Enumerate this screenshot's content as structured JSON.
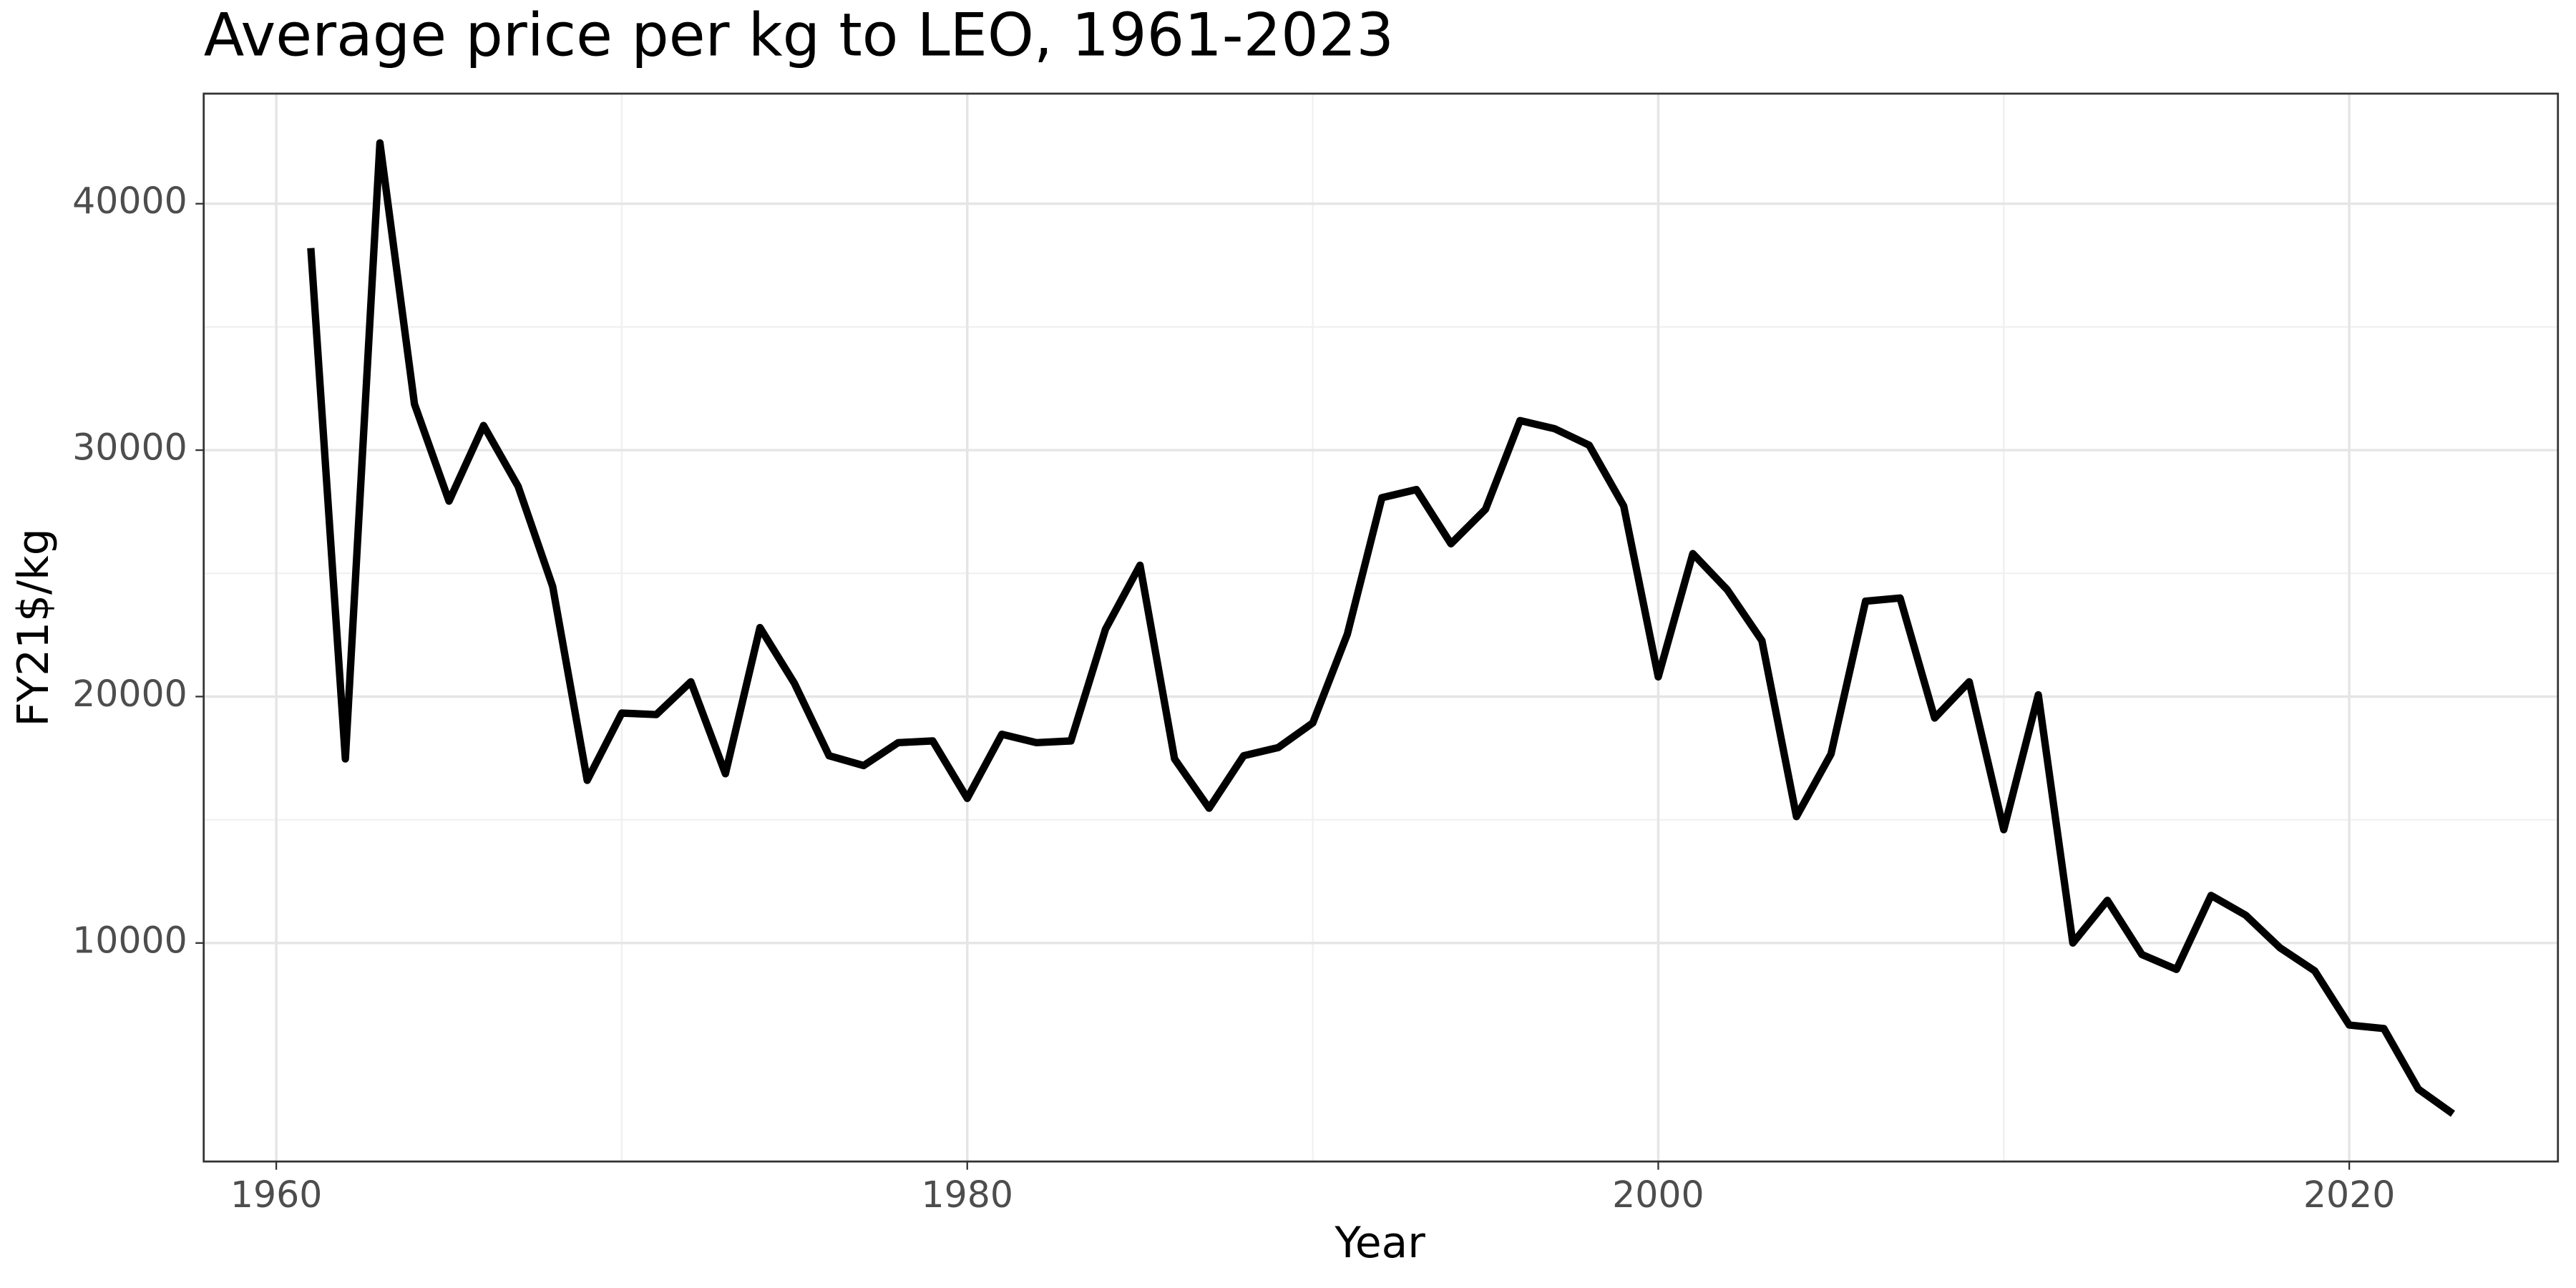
{
  "chart_data": {
    "type": "line",
    "title": "Average price per kg to LEO, 1961-2023",
    "x_label": "Year",
    "y_label": "FY21$/kg",
    "x": [
      1961,
      1962,
      1963,
      1964,
      1965,
      1966,
      1967,
      1968,
      1969,
      1970,
      1971,
      1972,
      1973,
      1974,
      1975,
      1976,
      1977,
      1978,
      1979,
      1980,
      1981,
      1982,
      1983,
      1984,
      1985,
      1986,
      1987,
      1988,
      1989,
      1990,
      1991,
      1992,
      1993,
      1994,
      1995,
      1996,
      1997,
      1998,
      1999,
      2000,
      2001,
      2002,
      2003,
      2004,
      2005,
      2006,
      2007,
      2008,
      2009,
      2010,
      2011,
      2012,
      2013,
      2014,
      2015,
      2016,
      2017,
      2018,
      2019,
      2020,
      2021,
      2022,
      2023
    ],
    "series": [
      {
        "name": "Price per kg",
        "color": "#000000",
        "values": [
          38200,
          17470,
          42470,
          31870,
          27930,
          31000,
          28530,
          24470,
          16600,
          19330,
          19270,
          20600,
          16870,
          22800,
          20530,
          17600,
          17200,
          18130,
          18200,
          15870,
          18470,
          18130,
          18200,
          22730,
          25330,
          17470,
          15470,
          17600,
          17930,
          18930,
          22530,
          28070,
          28400,
          26200,
          27600,
          31200,
          30870,
          30200,
          27730,
          20800,
          25800,
          24330,
          22270,
          15130,
          17670,
          23870,
          24000,
          19130,
          20600,
          14600,
          20070,
          10000,
          11730,
          9530,
          8930,
          11930,
          11130,
          9800,
          8870,
          6670,
          6530,
          4070,
          3070
        ]
      }
    ],
    "xlim": [
      1957.9,
      2026.04
    ],
    "xticks": [
      1960,
      1980,
      2000,
      2020
    ],
    "ylim": [
      1133,
      44467
    ],
    "yticks": [
      10000,
      20000,
      30000,
      40000
    ],
    "grid": true
  }
}
